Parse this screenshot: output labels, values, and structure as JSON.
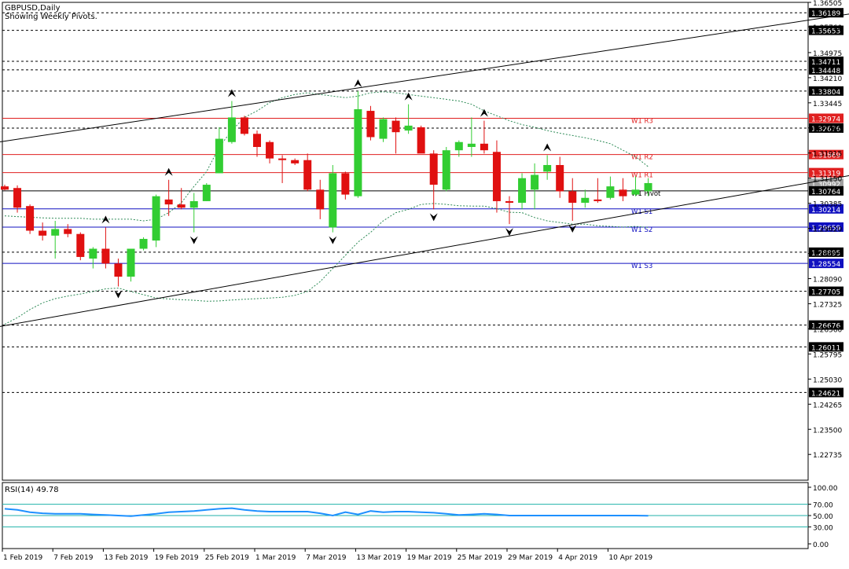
{
  "chart_data": [
    {
      "type": "candlestick",
      "title": "GBPUSD,Daily",
      "subtitle": "Showing Weekly Pivots.",
      "ylim": [
        1.2195,
        1.36505
      ],
      "price_ticks": [
        "1.36505",
        "1.35760",
        "1.34975",
        "1.34210",
        "1.33445",
        "1.32680",
        "1.31915",
        "1.31150",
        "1.30385",
        "1.29620",
        "1.28855",
        "1.28090",
        "1.27325",
        "1.26560",
        "1.25795",
        "1.25030",
        "1.24265",
        "1.23500",
        "1.22735"
      ],
      "horizontal_levels": [
        {
          "value": 1.36189,
          "label": "1.36189",
          "style": "dashed",
          "color": "#000000"
        },
        {
          "value": 1.35653,
          "label": "1.35653",
          "style": "dashed",
          "color": "#000000"
        },
        {
          "value": 1.34711,
          "label": "1.34711",
          "style": "dashed",
          "color": "#000000"
        },
        {
          "value": 1.34448,
          "label": "1.34448",
          "style": "dashed",
          "color": "#000000"
        },
        {
          "value": 1.33804,
          "label": "1.33804",
          "style": "dashed",
          "color": "#000000"
        },
        {
          "value": 1.32974,
          "label": "1.32974",
          "style": "solid",
          "color": "#e02020",
          "tag": "W1 R3"
        },
        {
          "value": 1.32676,
          "label": "1.32676",
          "style": "dashed",
          "color": "#000000"
        },
        {
          "value": 1.31869,
          "label": "1.31869",
          "style": "solid",
          "color": "#e02020",
          "tag": "W1 R2"
        },
        {
          "value": 1.31319,
          "label": "1.31319",
          "style": "solid",
          "color": "#e02020",
          "tag": "W1 R1"
        },
        {
          "value": 1.30992,
          "label": "1.30992",
          "style": "none",
          "color": "#a0a0a0"
        },
        {
          "value": 1.30764,
          "label": "1.30764",
          "style": "solid",
          "color": "#000000",
          "tag": "W1 Pivot"
        },
        {
          "value": 1.30214,
          "label": "1.30214",
          "style": "solid",
          "color": "#1010c0",
          "tag": "W1 S1"
        },
        {
          "value": 1.29659,
          "label": "1.29659",
          "style": "solid",
          "color": "#1010c0",
          "tag": "W1 S2"
        },
        {
          "value": 1.28895,
          "label": "1.28895",
          "style": "dashed",
          "color": "#000000"
        },
        {
          "value": 1.28554,
          "label": "1.28554",
          "style": "solid",
          "color": "#1010c0",
          "tag": "W1 S3"
        },
        {
          "value": 1.27705,
          "label": "1.27705",
          "style": "dashed",
          "color": "#000000"
        },
        {
          "value": 1.26676,
          "label": "1.26676",
          "style": "dashed",
          "color": "#000000"
        },
        {
          "value": 1.26011,
          "label": "1.26011",
          "style": "dashed",
          "color": "#000000"
        },
        {
          "value": 1.24621,
          "label": "1.24621",
          "style": "dashed",
          "color": "#000000"
        }
      ],
      "x_tick_labels": [
        "1 Feb 2019",
        "7 Feb 2019",
        "13 Feb 2019",
        "19 Feb 2019",
        "25 Feb 2019",
        "1 Mar 2019",
        "7 Mar 2019",
        "13 Mar 2019",
        "19 Mar 2019",
        "25 Mar 2019",
        "29 Mar 2019",
        "4 Apr 2019",
        "10 Apr 2019"
      ],
      "x_tick_bars": [
        0,
        4,
        8,
        12,
        16,
        20,
        24,
        28,
        32,
        36,
        40,
        44,
        48
      ],
      "candles": [
        {
          "o": 1.309,
          "h": 1.3095,
          "l": 1.3078,
          "c": 1.308
        },
        {
          "o": 1.3085,
          "h": 1.3093,
          "l": 1.301,
          "c": 1.3025
        },
        {
          "o": 1.303,
          "h": 1.3035,
          "l": 1.2945,
          "c": 1.2955
        },
        {
          "o": 1.2955,
          "h": 1.298,
          "l": 1.2925,
          "c": 1.294
        },
        {
          "o": 1.294,
          "h": 1.2985,
          "l": 1.287,
          "c": 1.296
        },
        {
          "o": 1.296,
          "h": 1.2975,
          "l": 1.2935,
          "c": 1.2945
        },
        {
          "o": 1.2945,
          "h": 1.295,
          "l": 1.2865,
          "c": 1.2875
        },
        {
          "o": 1.287,
          "h": 1.2905,
          "l": 1.284,
          "c": 1.29
        },
        {
          "o": 1.29,
          "h": 1.2965,
          "l": 1.284,
          "c": 1.2855
        },
        {
          "o": 1.2855,
          "h": 1.287,
          "l": 1.2785,
          "c": 1.2815
        },
        {
          "o": 1.2815,
          "h": 1.29,
          "l": 1.28,
          "c": 1.29
        },
        {
          "o": 1.29,
          "h": 1.2935,
          "l": 1.2895,
          "c": 1.293
        },
        {
          "o": 1.2925,
          "h": 1.3065,
          "l": 1.2905,
          "c": 1.306
        },
        {
          "o": 1.305,
          "h": 1.311,
          "l": 1.3,
          "c": 1.3035
        },
        {
          "o": 1.3035,
          "h": 1.3085,
          "l": 1.302,
          "c": 1.3025
        },
        {
          "o": 1.3025,
          "h": 1.307,
          "l": 1.295,
          "c": 1.3045
        },
        {
          "o": 1.3045,
          "h": 1.31,
          "l": 1.3045,
          "c": 1.3095
        },
        {
          "o": 1.313,
          "h": 1.327,
          "l": 1.313,
          "c": 1.3235
        },
        {
          "o": 1.3225,
          "h": 1.335,
          "l": 1.322,
          "c": 1.33
        },
        {
          "o": 1.33,
          "h": 1.3305,
          "l": 1.3245,
          "c": 1.325
        },
        {
          "o": 1.325,
          "h": 1.326,
          "l": 1.318,
          "c": 1.321
        },
        {
          "o": 1.3225,
          "h": 1.323,
          "l": 1.316,
          "c": 1.3175
        },
        {
          "o": 1.3175,
          "h": 1.3185,
          "l": 1.31,
          "c": 1.317
        },
        {
          "o": 1.317,
          "h": 1.3175,
          "l": 1.3155,
          "c": 1.316
        },
        {
          "o": 1.317,
          "h": 1.319,
          "l": 1.3075,
          "c": 1.308
        },
        {
          "o": 1.308,
          "h": 1.311,
          "l": 1.299,
          "c": 1.302
        },
        {
          "o": 1.2965,
          "h": 1.3155,
          "l": 1.295,
          "c": 1.313
        },
        {
          "o": 1.313,
          "h": 1.3135,
          "l": 1.305,
          "c": 1.3065
        },
        {
          "o": 1.306,
          "h": 1.338,
          "l": 1.3055,
          "c": 1.3325
        },
        {
          "o": 1.332,
          "h": 1.3335,
          "l": 1.323,
          "c": 1.324
        },
        {
          "o": 1.3235,
          "h": 1.33,
          "l": 1.3225,
          "c": 1.3295
        },
        {
          "o": 1.329,
          "h": 1.33,
          "l": 1.319,
          "c": 1.3255
        },
        {
          "o": 1.326,
          "h": 1.334,
          "l": 1.325,
          "c": 1.3275
        },
        {
          "o": 1.327,
          "h": 1.3275,
          "l": 1.3195,
          "c": 1.319
        },
        {
          "o": 1.319,
          "h": 1.32,
          "l": 1.302,
          "c": 1.3095
        },
        {
          "o": 1.308,
          "h": 1.321,
          "l": 1.3075,
          "c": 1.32
        },
        {
          "o": 1.32,
          "h": 1.323,
          "l": 1.318,
          "c": 1.3225
        },
        {
          "o": 1.321,
          "h": 1.33,
          "l": 1.318,
          "c": 1.322
        },
        {
          "o": 1.322,
          "h": 1.329,
          "l": 1.319,
          "c": 1.32
        },
        {
          "o": 1.3195,
          "h": 1.323,
          "l": 1.301,
          "c": 1.3045
        },
        {
          "o": 1.3045,
          "h": 1.306,
          "l": 1.2975,
          "c": 1.304
        },
        {
          "o": 1.304,
          "h": 1.313,
          "l": 1.302,
          "c": 1.3115
        },
        {
          "o": 1.308,
          "h": 1.316,
          "l": 1.302,
          "c": 1.3125
        },
        {
          "o": 1.3135,
          "h": 1.3185,
          "l": 1.311,
          "c": 1.3155
        },
        {
          "o": 1.3155,
          "h": 1.318,
          "l": 1.3055,
          "c": 1.3075
        },
        {
          "o": 1.3075,
          "h": 1.3115,
          "l": 1.2985,
          "c": 1.304
        },
        {
          "o": 1.304,
          "h": 1.308,
          "l": 1.3025,
          "c": 1.3055
        },
        {
          "o": 1.305,
          "h": 1.3115,
          "l": 1.304,
          "c": 1.3045
        },
        {
          "o": 1.3055,
          "h": 1.312,
          "l": 1.305,
          "c": 1.309
        },
        {
          "o": 1.308,
          "h": 1.3115,
          "l": 1.3045,
          "c": 1.306
        },
        {
          "o": 1.3065,
          "h": 1.312,
          "l": 1.306,
          "c": 1.308
        },
        {
          "o": 1.3075,
          "h": 1.3115,
          "l": 1.306,
          "c": 1.31
        }
      ],
      "colors": {
        "bull": "#32cd32",
        "bear": "#e01010",
        "band": "#2e8b57",
        "rsi": "#1e90ff",
        "rsi_level": "#20b2aa",
        "pivot_r": "#e02020",
        "pivot_s": "#1010c0"
      },
      "trendlines": [
        {
          "from": {
            "bar": -1,
            "value": 1.3222
          },
          "to": {
            "bar": 69,
            "value": 1.3627
          }
        },
        {
          "from": {
            "bar": -1,
            "value": 1.2659
          },
          "to": {
            "bar": 69,
            "value": 1.3137
          }
        }
      ],
      "fractals_up": [
        8,
        13,
        18,
        28,
        32,
        38,
        43
      ],
      "fractals_down": [
        9,
        15,
        26,
        34,
        40,
        45
      ],
      "band_upper": [
        1.3,
        1.2998,
        1.2996,
        1.2994,
        1.2993,
        1.2993,
        1.2993,
        1.299,
        1.299,
        1.299,
        1.299,
        1.2985,
        1.299,
        1.301,
        1.304,
        1.309,
        1.3135,
        1.321,
        1.326,
        1.33,
        1.332,
        1.3345,
        1.336,
        1.337,
        1.3375,
        1.337,
        1.3365,
        1.336,
        1.3365,
        1.3375,
        1.3378,
        1.3375,
        1.337,
        1.3365,
        1.336,
        1.3355,
        1.335,
        1.334,
        1.332,
        1.3305,
        1.329,
        1.3278,
        1.327,
        1.326,
        1.3252,
        1.3245,
        1.3238,
        1.323,
        1.322,
        1.32,
        1.318,
        1.315
      ],
      "band_lower": [
        1.267,
        1.269,
        1.2715,
        1.2735,
        1.2748,
        1.2756,
        1.2762,
        1.277,
        1.2778,
        1.278,
        1.277,
        1.276,
        1.275,
        1.2747,
        1.2745,
        1.2743,
        1.274,
        1.2741,
        1.2744,
        1.2746,
        1.2748,
        1.275,
        1.2752,
        1.2758,
        1.277,
        1.28,
        1.284,
        1.288,
        1.292,
        1.295,
        1.2985,
        1.301,
        1.302,
        1.3035,
        1.3038,
        1.3035,
        1.3031,
        1.303,
        1.303,
        1.3022,
        1.3011,
        1.301,
        1.2995,
        1.2985,
        1.298,
        1.2975,
        1.2975,
        1.297,
        1.2968,
        1.2966,
        1.2968,
        1.2965
      ],
      "rsi": {
        "label": "RSI(14) 49.78",
        "levels": [
          70,
          30
        ],
        "ticks": [
          "100.00",
          "70.00",
          "50.00",
          "30.00",
          "0.00"
        ],
        "values": [
          62,
          60,
          56,
          54,
          53,
          53,
          53,
          52,
          51,
          50,
          49,
          51,
          53,
          56,
          57,
          58,
          60,
          62,
          63,
          60,
          58,
          57,
          57,
          57,
          57,
          54,
          50,
          56,
          52,
          58,
          56,
          57,
          57,
          56,
          55,
          53,
          51,
          52,
          53,
          52,
          50,
          50,
          50,
          50,
          50,
          50,
          50,
          50,
          50,
          50,
          50,
          49.78
        ]
      }
    }
  ]
}
